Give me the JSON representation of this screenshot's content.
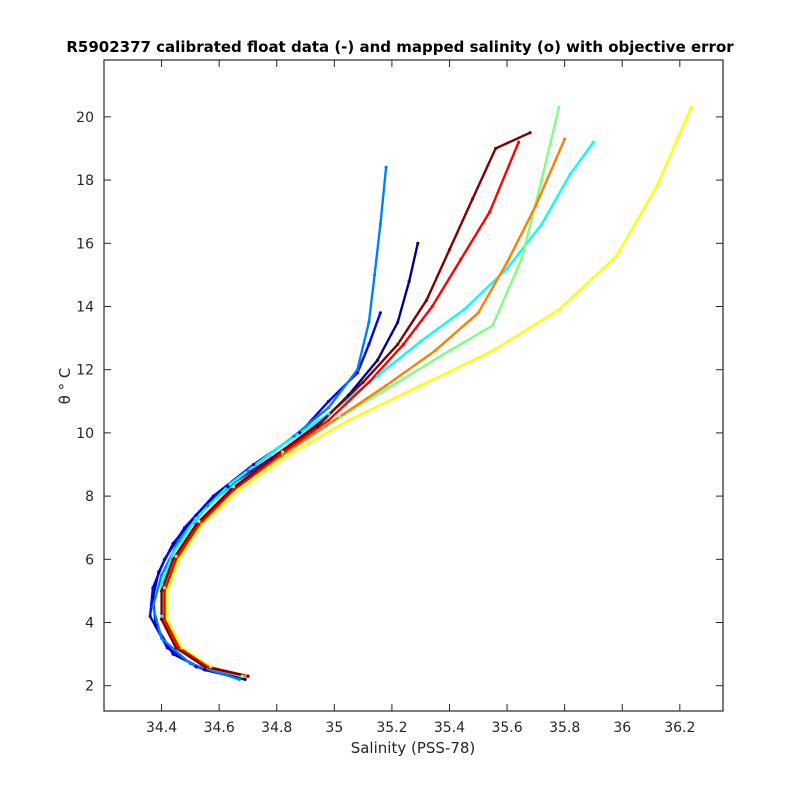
{
  "chart_data": {
    "type": "line",
    "title": "R5902377 calibrated float data (-) and mapped salinity (o) with objective error",
    "xlabel": "Salinity (PSS-78)",
    "ylabel": "θ ° C",
    "xlim": [
      34.2,
      36.35
    ],
    "ylim": [
      1.2,
      21.8
    ],
    "x_ticks": [
      "34.4",
      "34.6",
      "34.8",
      "35",
      "35.2",
      "35.4",
      "35.6",
      "35.8",
      "36",
      "36.2"
    ],
    "y_ticks": [
      "2",
      "4",
      "6",
      "8",
      "10",
      "12",
      "14",
      "16",
      "18",
      "20"
    ],
    "grid": false,
    "legend": "none",
    "colormap": [
      "#00008f",
      "#0000ff",
      "#0080ff",
      "#00ffff",
      "#80ff80",
      "#ffff00",
      "#ff8000",
      "#ff0000",
      "#800000"
    ],
    "series": [
      {
        "color": "#00008f",
        "points": [
          [
            34.69,
            2.2
          ],
          [
            34.55,
            2.5
          ],
          [
            34.44,
            3.0
          ],
          [
            34.38,
            3.9
          ],
          [
            34.37,
            4.8
          ],
          [
            34.39,
            5.6
          ],
          [
            34.44,
            6.5
          ],
          [
            34.52,
            7.4
          ],
          [
            34.63,
            8.3
          ],
          [
            34.78,
            9.2
          ],
          [
            34.94,
            10.2
          ],
          [
            35.05,
            11.2
          ],
          [
            35.15,
            12.3
          ],
          [
            35.22,
            13.5
          ],
          [
            35.26,
            14.8
          ],
          [
            35.29,
            16.0
          ]
        ]
      },
      {
        "color": "#0000ff",
        "points": [
          [
            34.68,
            2.3
          ],
          [
            34.52,
            2.6
          ],
          [
            34.42,
            3.2
          ],
          [
            34.36,
            4.2
          ],
          [
            34.37,
            5.1
          ],
          [
            34.41,
            6.0
          ],
          [
            34.48,
            7.0
          ],
          [
            34.58,
            8.0
          ],
          [
            34.72,
            9.0
          ],
          [
            34.88,
            10.0
          ],
          [
            34.98,
            11.0
          ],
          [
            35.08,
            11.9
          ],
          [
            35.12,
            12.8
          ],
          [
            35.16,
            13.8
          ]
        ]
      },
      {
        "color": "#0080ff",
        "points": [
          [
            34.67,
            2.2
          ],
          [
            34.5,
            2.7
          ],
          [
            34.4,
            3.5
          ],
          [
            34.37,
            4.5
          ],
          [
            34.4,
            5.5
          ],
          [
            34.46,
            6.6
          ],
          [
            34.56,
            7.7
          ],
          [
            34.7,
            8.8
          ],
          [
            34.86,
            9.9
          ],
          [
            34.98,
            10.8
          ],
          [
            35.08,
            12.0
          ],
          [
            35.12,
            13.5
          ],
          [
            35.14,
            15.0
          ],
          [
            35.16,
            16.6
          ],
          [
            35.18,
            18.4
          ]
        ]
      },
      {
        "color": "#00ffff",
        "points": [
          [
            34.68,
            2.3
          ],
          [
            34.55,
            2.6
          ],
          [
            34.45,
            3.2
          ],
          [
            34.4,
            4.2
          ],
          [
            34.4,
            5.2
          ],
          [
            34.44,
            6.2
          ],
          [
            34.52,
            7.3
          ],
          [
            34.64,
            8.4
          ],
          [
            34.8,
            9.5
          ],
          [
            34.98,
            10.6
          ],
          [
            35.15,
            11.8
          ],
          [
            35.3,
            12.9
          ],
          [
            35.45,
            13.9
          ],
          [
            35.6,
            15.2
          ],
          [
            35.72,
            16.6
          ],
          [
            35.82,
            18.2
          ],
          [
            35.9,
            19.2
          ]
        ]
      },
      {
        "color": "#80ff80",
        "points": [
          [
            34.68,
            2.3
          ],
          [
            34.56,
            2.6
          ],
          [
            34.46,
            3.2
          ],
          [
            34.41,
            4.1
          ],
          [
            34.41,
            5.1
          ],
          [
            34.45,
            6.1
          ],
          [
            34.53,
            7.2
          ],
          [
            34.65,
            8.3
          ],
          [
            34.82,
            9.4
          ],
          [
            35.02,
            10.5
          ],
          [
            35.22,
            11.6
          ],
          [
            35.4,
            12.6
          ],
          [
            35.55,
            13.4
          ],
          [
            35.65,
            15.5
          ],
          [
            35.72,
            18.0
          ],
          [
            35.78,
            20.3
          ]
        ]
      },
      {
        "color": "#ffff00",
        "points": [
          [
            34.69,
            2.3
          ],
          [
            34.57,
            2.6
          ],
          [
            34.47,
            3.2
          ],
          [
            34.42,
            4.1
          ],
          [
            34.42,
            5.0
          ],
          [
            34.46,
            6.0
          ],
          [
            34.54,
            7.1
          ],
          [
            34.67,
            8.2
          ],
          [
            34.84,
            9.3
          ],
          [
            35.05,
            10.4
          ],
          [
            35.3,
            11.5
          ],
          [
            35.55,
            12.6
          ],
          [
            35.78,
            13.9
          ],
          [
            35.98,
            15.6
          ],
          [
            36.12,
            17.8
          ],
          [
            36.24,
            20.3
          ]
        ]
      },
      {
        "color": "#ff8000",
        "points": [
          [
            34.69,
            2.3
          ],
          [
            34.56,
            2.6
          ],
          [
            34.46,
            3.2
          ],
          [
            34.41,
            4.1
          ],
          [
            34.41,
            5.0
          ],
          [
            34.45,
            6.0
          ],
          [
            34.53,
            7.1
          ],
          [
            34.65,
            8.2
          ],
          [
            34.82,
            9.3
          ],
          [
            35.0,
            10.4
          ],
          [
            35.18,
            11.5
          ],
          [
            35.35,
            12.6
          ],
          [
            35.5,
            13.8
          ],
          [
            35.6,
            15.4
          ],
          [
            35.7,
            17.2
          ],
          [
            35.8,
            19.3
          ]
        ]
      },
      {
        "color": "#ff0000",
        "points": [
          [
            34.7,
            2.3
          ],
          [
            34.56,
            2.6
          ],
          [
            34.46,
            3.2
          ],
          [
            34.41,
            4.1
          ],
          [
            34.41,
            5.0
          ],
          [
            34.45,
            6.0
          ],
          [
            34.53,
            7.1
          ],
          [
            34.65,
            8.2
          ],
          [
            34.81,
            9.3
          ],
          [
            34.98,
            10.4
          ],
          [
            35.12,
            11.6
          ],
          [
            35.24,
            12.8
          ],
          [
            35.34,
            14.0
          ],
          [
            35.44,
            15.5
          ],
          [
            35.54,
            17.0
          ],
          [
            35.64,
            19.2
          ]
        ]
      },
      {
        "color": "#800000",
        "points": [
          [
            34.7,
            2.3
          ],
          [
            34.55,
            2.6
          ],
          [
            34.45,
            3.2
          ],
          [
            34.4,
            4.1
          ],
          [
            34.4,
            5.0
          ],
          [
            34.44,
            6.0
          ],
          [
            34.52,
            7.1
          ],
          [
            34.64,
            8.2
          ],
          [
            34.8,
            9.3
          ],
          [
            34.96,
            10.4
          ],
          [
            35.1,
            11.6
          ],
          [
            35.22,
            12.8
          ],
          [
            35.32,
            14.2
          ],
          [
            35.4,
            15.8
          ],
          [
            35.48,
            17.4
          ],
          [
            35.56,
            19.0
          ],
          [
            35.68,
            19.5
          ]
        ]
      }
    ]
  }
}
